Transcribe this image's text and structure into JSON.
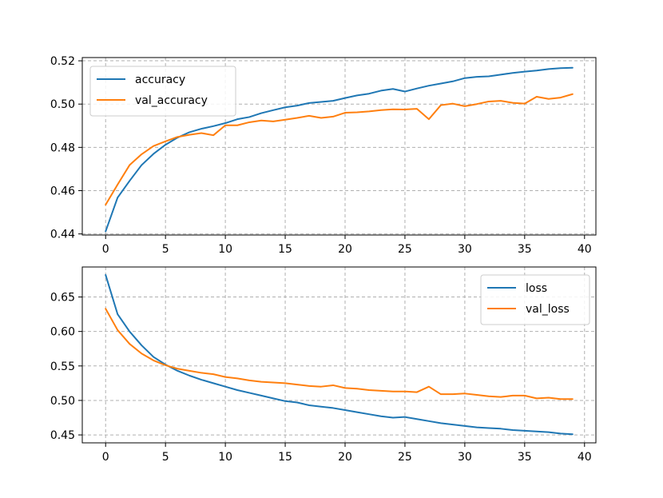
{
  "chart_data": [
    {
      "type": "line",
      "title": "",
      "xlabel": "",
      "ylabel": "",
      "xlim": [
        -1.95,
        40.95
      ],
      "ylim": [
        0.4395,
        0.5215
      ],
      "xticks": [
        0,
        5,
        10,
        15,
        20,
        25,
        30,
        35,
        40
      ],
      "yticks": [
        0.44,
        0.46,
        0.48,
        0.5,
        0.52
      ],
      "ytick_labels": [
        "0.44",
        "0.46",
        "0.48",
        "0.50",
        "0.52"
      ],
      "grid": true,
      "legend_position": "upper-left",
      "x": [
        0,
        1,
        2,
        3,
        4,
        5,
        6,
        7,
        8,
        9,
        10,
        11,
        12,
        13,
        14,
        15,
        16,
        17,
        18,
        19,
        20,
        21,
        22,
        23,
        24,
        25,
        26,
        27,
        28,
        29,
        30,
        31,
        32,
        33,
        34,
        35,
        36,
        37,
        38,
        39
      ],
      "series": [
        {
          "name": "accuracy",
          "color": "#1f77b4",
          "values": [
            0.4412,
            0.4568,
            0.4645,
            0.4718,
            0.477,
            0.4812,
            0.4845,
            0.487,
            0.4886,
            0.4898,
            0.4912,
            0.493,
            0.494,
            0.4958,
            0.4972,
            0.4985,
            0.4993,
            0.5005,
            0.501,
            0.5015,
            0.5028,
            0.504,
            0.5048,
            0.5062,
            0.507,
            0.5058,
            0.5072,
            0.5085,
            0.5095,
            0.5105,
            0.512,
            0.5126,
            0.5128,
            0.5136,
            0.5144,
            0.515,
            0.5155,
            0.5162,
            0.5166,
            0.5168
          ]
        },
        {
          "name": "val_accuracy",
          "color": "#ff7f0e",
          "values": [
            0.4535,
            0.4628,
            0.4718,
            0.4768,
            0.4806,
            0.4828,
            0.4848,
            0.4858,
            0.4866,
            0.4856,
            0.4902,
            0.4902,
            0.4916,
            0.4924,
            0.492,
            0.4928,
            0.4936,
            0.4946,
            0.4936,
            0.4942,
            0.496,
            0.4962,
            0.4966,
            0.4972,
            0.4976,
            0.4975,
            0.4978,
            0.493,
            0.4995,
            0.5002,
            0.499,
            0.5,
            0.5012,
            0.5015,
            0.5006,
            0.5002,
            0.5034,
            0.5024,
            0.503,
            0.5046
          ]
        }
      ]
    },
    {
      "type": "line",
      "title": "",
      "xlabel": "",
      "ylabel": "",
      "xlim": [
        -1.95,
        40.95
      ],
      "ylim": [
        0.4385,
        0.6935
      ],
      "xticks": [
        0,
        5,
        10,
        15,
        20,
        25,
        30,
        35,
        40
      ],
      "yticks": [
        0.45,
        0.5,
        0.55,
        0.6,
        0.65
      ],
      "ytick_labels": [
        "0.45",
        "0.50",
        "0.55",
        "0.60",
        "0.65"
      ],
      "grid": true,
      "legend_position": "upper-right",
      "x": [
        0,
        1,
        2,
        3,
        4,
        5,
        6,
        7,
        8,
        9,
        10,
        11,
        12,
        13,
        14,
        15,
        16,
        17,
        18,
        19,
        20,
        21,
        22,
        23,
        24,
        25,
        26,
        27,
        28,
        29,
        30,
        31,
        32,
        33,
        34,
        35,
        36,
        37,
        38,
        39
      ],
      "series": [
        {
          "name": "loss",
          "color": "#1f77b4",
          "values": [
            0.682,
            0.625,
            0.6,
            0.58,
            0.563,
            0.552,
            0.543,
            0.536,
            0.53,
            0.525,
            0.52,
            0.515,
            0.511,
            0.507,
            0.503,
            0.499,
            0.497,
            0.493,
            0.491,
            0.489,
            0.486,
            0.483,
            0.48,
            0.477,
            0.475,
            0.476,
            0.473,
            0.47,
            0.467,
            0.465,
            0.463,
            0.461,
            0.46,
            0.459,
            0.457,
            0.456,
            0.455,
            0.454,
            0.452,
            0.451
          ]
        },
        {
          "name": "val_loss",
          "color": "#ff7f0e",
          "values": [
            0.633,
            0.602,
            0.582,
            0.568,
            0.558,
            0.551,
            0.546,
            0.543,
            0.54,
            0.538,
            0.534,
            0.532,
            0.529,
            0.527,
            0.526,
            0.525,
            0.523,
            0.521,
            0.52,
            0.522,
            0.518,
            0.517,
            0.515,
            0.514,
            0.513,
            0.513,
            0.512,
            0.52,
            0.509,
            0.509,
            0.51,
            0.508,
            0.506,
            0.505,
            0.507,
            0.507,
            0.503,
            0.504,
            0.502,
            0.502
          ]
        }
      ]
    }
  ]
}
